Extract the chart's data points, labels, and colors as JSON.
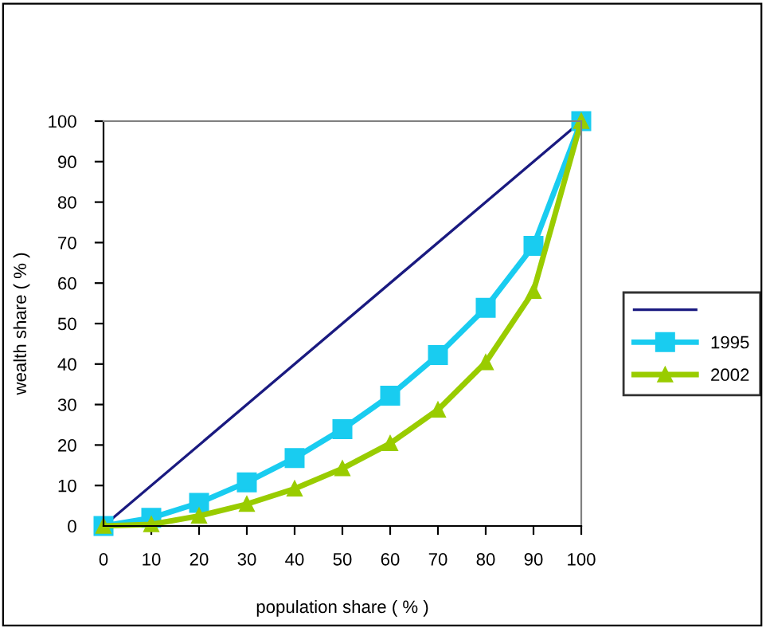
{
  "chart_data": {
    "type": "line",
    "xlabel": "population share ( % )",
    "ylabel": "wealth share ( % )",
    "x": [
      0,
      10,
      20,
      30,
      40,
      50,
      60,
      70,
      80,
      90,
      100
    ],
    "series": [
      {
        "color": "#1a1a80",
        "marker": "none",
        "x": [
          0,
          100
        ],
        "values": [
          0,
          100
        ]
      },
      {
        "name": "1995",
        "color": "#19ccf0",
        "marker": "square",
        "values": [
          0,
          2.0,
          5.7,
          10.8,
          16.8,
          23.9,
          32.2,
          42.2,
          53.9,
          69.2,
          100
        ]
      },
      {
        "name": "2002",
        "color": "#99cc00",
        "marker": "triangle",
        "values": [
          0,
          0.4,
          2.5,
          5.4,
          9.2,
          14.2,
          20.4,
          28.7,
          40.4,
          58.0,
          100
        ]
      }
    ],
    "xlim": [
      0,
      100
    ],
    "ylim": [
      0,
      100
    ],
    "xticks": [
      0,
      10,
      20,
      30,
      40,
      50,
      60,
      70,
      80,
      90,
      100
    ],
    "yticks": [
      0,
      10,
      20,
      30,
      40,
      50,
      60,
      70,
      80,
      90,
      100
    ],
    "grid": false,
    "legend": "right"
  }
}
